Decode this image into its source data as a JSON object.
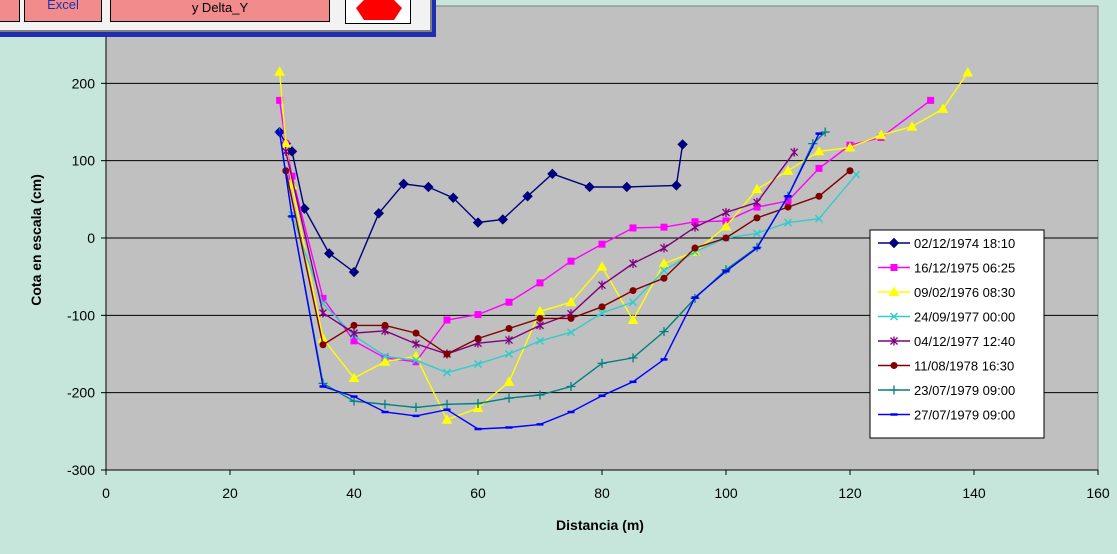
{
  "toolbar": {
    "excel_label": "Excel",
    "delta_label": "y Delta_Y"
  },
  "colors": {
    "background": "#c6e6dc",
    "plot_area": "#c0c0c0",
    "toolbar_frame": "#1f2fb0",
    "toolbar_button": "#f28b8b",
    "stop_red": "#ff0000"
  },
  "chart_data": {
    "type": "line",
    "title": "",
    "xlabel": "Distancia (m)",
    "ylabel": "Cota en escala (cm)",
    "xlim": [
      0,
      160
    ],
    "ylim": [
      -300,
      200
    ],
    "ylim_visible_top": 300,
    "xticks": [
      0,
      20,
      40,
      60,
      80,
      100,
      120,
      140,
      160
    ],
    "yticks": [
      -300,
      -200,
      -100,
      0,
      100,
      200
    ],
    "grid": "horizontal",
    "legend_position": "right",
    "series": [
      {
        "name": "02/12/1974 18:10",
        "color": "#00007f",
        "marker": "diamond",
        "x": [
          28,
          29,
          30,
          32,
          36,
          40,
          44,
          48,
          52,
          56,
          60,
          64,
          68,
          72,
          78,
          84,
          92,
          93
        ],
        "y": [
          137,
          122,
          112,
          38,
          -20,
          -44,
          32,
          70,
          66,
          52,
          20,
          24,
          54,
          83,
          66,
          66,
          68,
          121
        ]
      },
      {
        "name": "16/12/1975 06:25",
        "color": "#ff00ff",
        "marker": "square",
        "x": [
          28,
          29,
          30,
          35,
          40,
          45,
          50,
          55,
          60,
          65,
          70,
          75,
          80,
          85,
          90,
          95,
          100,
          105,
          110,
          115,
          120,
          125,
          133
        ],
        "y": [
          178,
          122,
          80,
          -78,
          -133,
          -155,
          -160,
          -106,
          -99,
          -83,
          -58,
          -30,
          -8,
          13,
          14,
          21,
          22,
          40,
          48,
          90,
          120,
          130,
          178
        ]
      },
      {
        "name": "09/02/1976 08:30",
        "color": "#ffff00",
        "marker": "triangle",
        "x": [
          28,
          29,
          30,
          35,
          40,
          45,
          50,
          55,
          60,
          65,
          70,
          75,
          80,
          85,
          90,
          95,
          100,
          105,
          110,
          115,
          120,
          125,
          130,
          135,
          139
        ],
        "y": [
          215,
          122,
          68,
          -130,
          -181,
          -160,
          -153,
          -235,
          -220,
          -186,
          -95,
          -83,
          -37,
          -106,
          -33,
          -18,
          15,
          63,
          87,
          112,
          117,
          133,
          144,
          167,
          214
        ]
      },
      {
        "name": "24/09/1977 00:00",
        "color": "#33cccc",
        "marker": "x",
        "x": [
          30,
          35,
          40,
          45,
          50,
          55,
          60,
          65,
          70,
          75,
          80,
          85,
          90,
          95,
          100,
          105,
          110,
          115,
          121
        ],
        "y": [
          30,
          -85,
          -126,
          -153,
          -158,
          -174,
          -163,
          -150,
          -133,
          -122,
          -97,
          -83,
          -42,
          -18,
          0,
          6,
          20,
          25,
          82
        ]
      },
      {
        "name": "04/12/1977 12:40",
        "color": "#7f007f",
        "marker": "star",
        "x": [
          29,
          35,
          40,
          45,
          50,
          55,
          60,
          65,
          70,
          75,
          80,
          85,
          90,
          95,
          100,
          105,
          111
        ],
        "y": [
          112,
          -97,
          -123,
          -120,
          -137,
          -150,
          -136,
          -132,
          -113,
          -98,
          -61,
          -33,
          -13,
          14,
          33,
          46,
          111
        ]
      },
      {
        "name": "11/08/1978 16:30",
        "color": "#800000",
        "marker": "circle",
        "x": [
          29,
          35,
          40,
          45,
          50,
          55,
          60,
          65,
          70,
          75,
          80,
          85,
          90,
          95,
          100,
          105,
          110,
          115,
          120
        ],
        "y": [
          87,
          -138,
          -113,
          -113,
          -123,
          -150,
          -130,
          -117,
          -104,
          -104,
          -89,
          -68,
          -52,
          -13,
          0,
          26,
          40,
          54,
          87
        ]
      },
      {
        "name": "23/07/1979 09:00",
        "color": "#008080",
        "marker": "plus",
        "x": [
          28,
          30,
          35,
          40,
          45,
          50,
          55,
          60,
          65,
          70,
          75,
          80,
          85,
          90,
          95,
          100,
          105,
          110,
          114,
          116
        ],
        "y": [
          137,
          28,
          -188,
          -211,
          -215,
          -219,
          -215,
          -214,
          -207,
          -203,
          -192,
          -162,
          -155,
          -121,
          -78,
          -41,
          -12,
          54,
          122,
          137
        ]
      },
      {
        "name": "27/07/1979 09:00",
        "color": "#0000ff",
        "marker": "dash",
        "x": [
          28,
          30,
          35,
          40,
          45,
          50,
          55,
          60,
          65,
          70,
          75,
          80,
          85,
          90,
          95,
          100,
          105,
          110,
          115
        ],
        "y": [
          137,
          28,
          -192,
          -205,
          -225,
          -230,
          -222,
          -247,
          -245,
          -241,
          -225,
          -204,
          -186,
          -157,
          -77,
          -43,
          -13,
          54,
          135
        ]
      }
    ]
  }
}
